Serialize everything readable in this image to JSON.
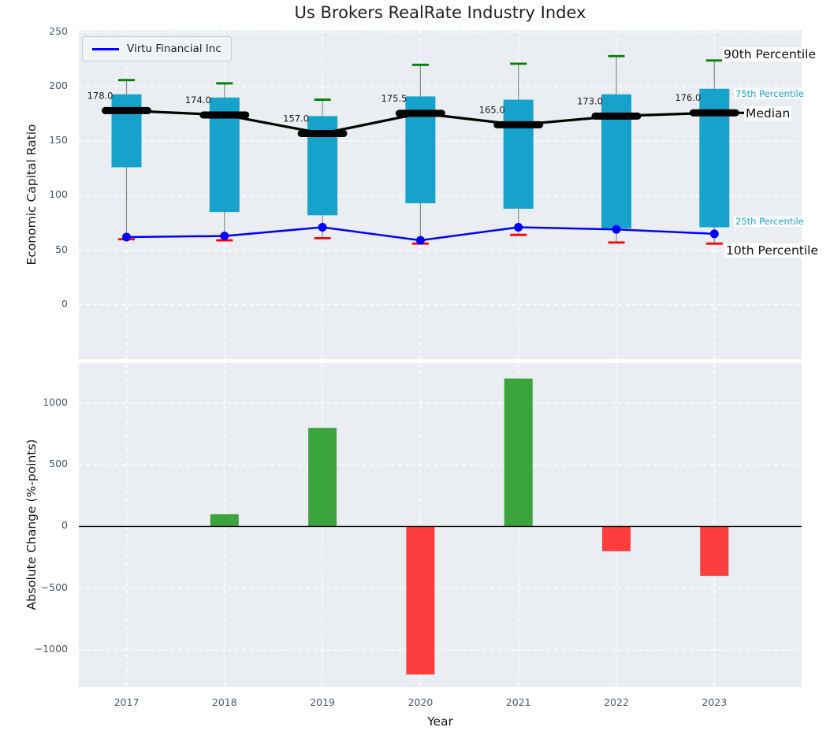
{
  "title": "Us Brokers RealRate Industry Index",
  "legend": {
    "label": "Virtu Financial Inc"
  },
  "colors": {
    "box": "#17a2cc",
    "p90_tick": "#008000",
    "p10_tick": "#ff0000",
    "median": "#000000",
    "company": "#0000ff",
    "bar_up": "#3ca43c",
    "bar_down": "#fc3d3d",
    "panel_bg": "#eaedf1",
    "grid": "#ffffff",
    "whisker": "#8a8a8a",
    "tick_label": "#46586b"
  },
  "chart_data": [
    {
      "type": "line",
      "subtype": "percentile-range-bars-with-median-and-company-line",
      "title": "Us Brokers RealRate Industry Index",
      "ylabel": "Economic Capital Ratio",
      "categories": [
        "2017",
        "2018",
        "2019",
        "2020",
        "2021",
        "2022",
        "2023"
      ],
      "yticks": [
        0,
        50,
        100,
        150,
        200,
        250
      ],
      "ytick_labels": [
        "0",
        "50",
        "100",
        "150",
        "200",
        "250"
      ],
      "ylim": [
        -50,
        252
      ],
      "grid": true,
      "legend_position": "upper left",
      "series": [
        {
          "key": "p90",
          "name": "90th Percentile",
          "values": [
            206,
            203,
            188,
            220,
            221,
            228,
            224
          ]
        },
        {
          "key": "p75",
          "name": "75th Percentile",
          "values": [
            193,
            190,
            173,
            191,
            188,
            193,
            198
          ]
        },
        {
          "key": "median",
          "name": "Median",
          "values": [
            178,
            174,
            157,
            175.5,
            165,
            173,
            176
          ]
        },
        {
          "key": "p25",
          "name": "25th Percentile",
          "values": [
            126,
            85,
            82,
            93,
            88,
            70,
            71
          ]
        },
        {
          "key": "p10",
          "name": "10th Percentile",
          "values": [
            60,
            59,
            61,
            56,
            64,
            57,
            56
          ]
        },
        {
          "key": "company",
          "name": "Virtu Financial Inc",
          "values": [
            62,
            63,
            71,
            59,
            71,
            69,
            65
          ]
        }
      ],
      "median_labels": [
        "178.0",
        "174.0",
        "157.0",
        "175.5",
        "165.0",
        "173.0",
        "176.0"
      ],
      "annotations": [
        "90th Percentile",
        "75th Percentile",
        "Median",
        "25th Percentile",
        "10th Percentile"
      ]
    },
    {
      "type": "bar",
      "ylabel": "Absolute Change (%-points)",
      "xlabel": "Year",
      "categories": [
        "2017",
        "2018",
        "2019",
        "2020",
        "2021",
        "2022",
        "2023"
      ],
      "values": [
        0,
        100,
        800,
        -1200,
        1200,
        -200,
        -400
      ],
      "yticks": [
        -1000,
        -500,
        0,
        500,
        1000
      ],
      "ytick_labels": [
        "−1000",
        "−500",
        "0",
        "500",
        "1000"
      ],
      "ylim": [
        -1300,
        1325
      ],
      "grid": true
    }
  ]
}
